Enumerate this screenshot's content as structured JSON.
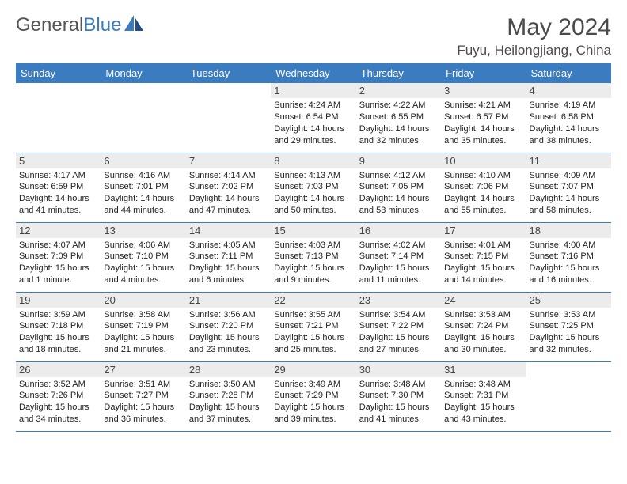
{
  "logo": {
    "text1": "General",
    "text2": "Blue"
  },
  "title": "May 2024",
  "location": "Fuyu, Heilongjiang, China",
  "colors": {
    "header_bg": "#3b7bbf",
    "header_text": "#ffffff",
    "daynum_bg": "#ececec",
    "border": "#3b7bbf",
    "logo_gray": "#555555",
    "logo_blue": "#3b7bbf"
  },
  "weekdays": [
    "Sunday",
    "Monday",
    "Tuesday",
    "Wednesday",
    "Thursday",
    "Friday",
    "Saturday"
  ],
  "weeks": [
    [
      {
        "day": "",
        "sunrise": "",
        "sunset": "",
        "daylight": ""
      },
      {
        "day": "",
        "sunrise": "",
        "sunset": "",
        "daylight": ""
      },
      {
        "day": "",
        "sunrise": "",
        "sunset": "",
        "daylight": ""
      },
      {
        "day": "1",
        "sunrise": "Sunrise: 4:24 AM",
        "sunset": "Sunset: 6:54 PM",
        "daylight": "Daylight: 14 hours and 29 minutes."
      },
      {
        "day": "2",
        "sunrise": "Sunrise: 4:22 AM",
        "sunset": "Sunset: 6:55 PM",
        "daylight": "Daylight: 14 hours and 32 minutes."
      },
      {
        "day": "3",
        "sunrise": "Sunrise: 4:21 AM",
        "sunset": "Sunset: 6:57 PM",
        "daylight": "Daylight: 14 hours and 35 minutes."
      },
      {
        "day": "4",
        "sunrise": "Sunrise: 4:19 AM",
        "sunset": "Sunset: 6:58 PM",
        "daylight": "Daylight: 14 hours and 38 minutes."
      }
    ],
    [
      {
        "day": "5",
        "sunrise": "Sunrise: 4:17 AM",
        "sunset": "Sunset: 6:59 PM",
        "daylight": "Daylight: 14 hours and 41 minutes."
      },
      {
        "day": "6",
        "sunrise": "Sunrise: 4:16 AM",
        "sunset": "Sunset: 7:01 PM",
        "daylight": "Daylight: 14 hours and 44 minutes."
      },
      {
        "day": "7",
        "sunrise": "Sunrise: 4:14 AM",
        "sunset": "Sunset: 7:02 PM",
        "daylight": "Daylight: 14 hours and 47 minutes."
      },
      {
        "day": "8",
        "sunrise": "Sunrise: 4:13 AM",
        "sunset": "Sunset: 7:03 PM",
        "daylight": "Daylight: 14 hours and 50 minutes."
      },
      {
        "day": "9",
        "sunrise": "Sunrise: 4:12 AM",
        "sunset": "Sunset: 7:05 PM",
        "daylight": "Daylight: 14 hours and 53 minutes."
      },
      {
        "day": "10",
        "sunrise": "Sunrise: 4:10 AM",
        "sunset": "Sunset: 7:06 PM",
        "daylight": "Daylight: 14 hours and 55 minutes."
      },
      {
        "day": "11",
        "sunrise": "Sunrise: 4:09 AM",
        "sunset": "Sunset: 7:07 PM",
        "daylight": "Daylight: 14 hours and 58 minutes."
      }
    ],
    [
      {
        "day": "12",
        "sunrise": "Sunrise: 4:07 AM",
        "sunset": "Sunset: 7:09 PM",
        "daylight": "Daylight: 15 hours and 1 minute."
      },
      {
        "day": "13",
        "sunrise": "Sunrise: 4:06 AM",
        "sunset": "Sunset: 7:10 PM",
        "daylight": "Daylight: 15 hours and 4 minutes."
      },
      {
        "day": "14",
        "sunrise": "Sunrise: 4:05 AM",
        "sunset": "Sunset: 7:11 PM",
        "daylight": "Daylight: 15 hours and 6 minutes."
      },
      {
        "day": "15",
        "sunrise": "Sunrise: 4:03 AM",
        "sunset": "Sunset: 7:13 PM",
        "daylight": "Daylight: 15 hours and 9 minutes."
      },
      {
        "day": "16",
        "sunrise": "Sunrise: 4:02 AM",
        "sunset": "Sunset: 7:14 PM",
        "daylight": "Daylight: 15 hours and 11 minutes."
      },
      {
        "day": "17",
        "sunrise": "Sunrise: 4:01 AM",
        "sunset": "Sunset: 7:15 PM",
        "daylight": "Daylight: 15 hours and 14 minutes."
      },
      {
        "day": "18",
        "sunrise": "Sunrise: 4:00 AM",
        "sunset": "Sunset: 7:16 PM",
        "daylight": "Daylight: 15 hours and 16 minutes."
      }
    ],
    [
      {
        "day": "19",
        "sunrise": "Sunrise: 3:59 AM",
        "sunset": "Sunset: 7:18 PM",
        "daylight": "Daylight: 15 hours and 18 minutes."
      },
      {
        "day": "20",
        "sunrise": "Sunrise: 3:58 AM",
        "sunset": "Sunset: 7:19 PM",
        "daylight": "Daylight: 15 hours and 21 minutes."
      },
      {
        "day": "21",
        "sunrise": "Sunrise: 3:56 AM",
        "sunset": "Sunset: 7:20 PM",
        "daylight": "Daylight: 15 hours and 23 minutes."
      },
      {
        "day": "22",
        "sunrise": "Sunrise: 3:55 AM",
        "sunset": "Sunset: 7:21 PM",
        "daylight": "Daylight: 15 hours and 25 minutes."
      },
      {
        "day": "23",
        "sunrise": "Sunrise: 3:54 AM",
        "sunset": "Sunset: 7:22 PM",
        "daylight": "Daylight: 15 hours and 27 minutes."
      },
      {
        "day": "24",
        "sunrise": "Sunrise: 3:53 AM",
        "sunset": "Sunset: 7:24 PM",
        "daylight": "Daylight: 15 hours and 30 minutes."
      },
      {
        "day": "25",
        "sunrise": "Sunrise: 3:53 AM",
        "sunset": "Sunset: 7:25 PM",
        "daylight": "Daylight: 15 hours and 32 minutes."
      }
    ],
    [
      {
        "day": "26",
        "sunrise": "Sunrise: 3:52 AM",
        "sunset": "Sunset: 7:26 PM",
        "daylight": "Daylight: 15 hours and 34 minutes."
      },
      {
        "day": "27",
        "sunrise": "Sunrise: 3:51 AM",
        "sunset": "Sunset: 7:27 PM",
        "daylight": "Daylight: 15 hours and 36 minutes."
      },
      {
        "day": "28",
        "sunrise": "Sunrise: 3:50 AM",
        "sunset": "Sunset: 7:28 PM",
        "daylight": "Daylight: 15 hours and 37 minutes."
      },
      {
        "day": "29",
        "sunrise": "Sunrise: 3:49 AM",
        "sunset": "Sunset: 7:29 PM",
        "daylight": "Daylight: 15 hours and 39 minutes."
      },
      {
        "day": "30",
        "sunrise": "Sunrise: 3:48 AM",
        "sunset": "Sunset: 7:30 PM",
        "daylight": "Daylight: 15 hours and 41 minutes."
      },
      {
        "day": "31",
        "sunrise": "Sunrise: 3:48 AM",
        "sunset": "Sunset: 7:31 PM",
        "daylight": "Daylight: 15 hours and 43 minutes."
      },
      {
        "day": "",
        "sunrise": "",
        "sunset": "",
        "daylight": ""
      }
    ]
  ]
}
